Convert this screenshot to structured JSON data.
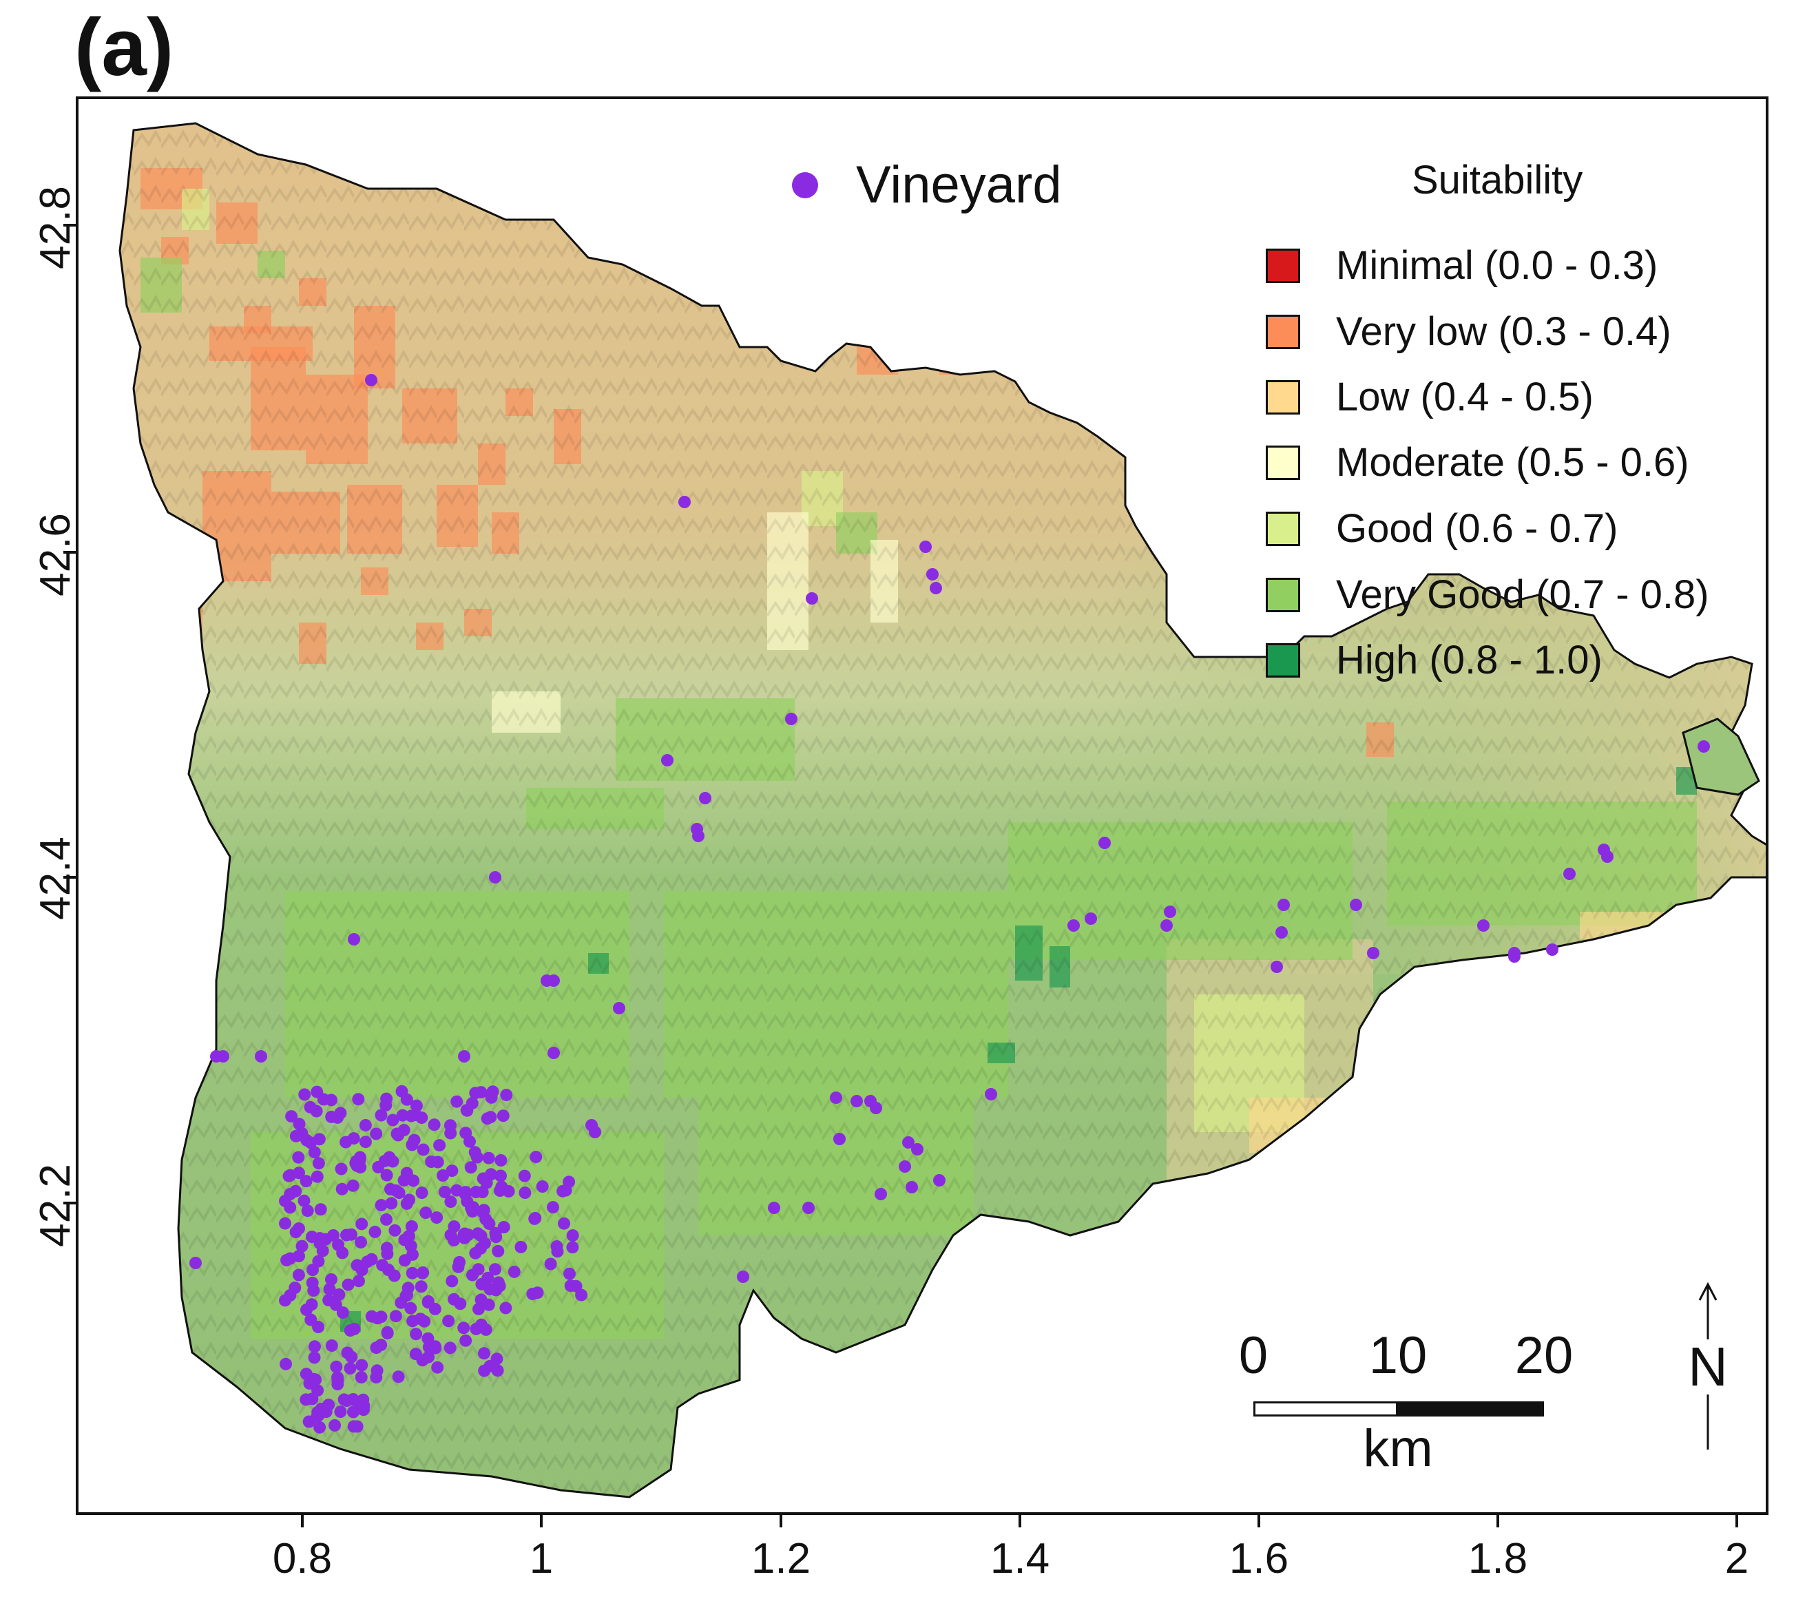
{
  "panel_label": "(a)",
  "map": {
    "colors": {
      "minimal": "#d7191c",
      "very_low": "#fc8d59",
      "low": "#fed98e",
      "moderate": "#ffffcc",
      "good": "#d9ef8b",
      "very_good": "#91cf60",
      "high": "#1a9850",
      "vineyard": "#8a2be2"
    }
  },
  "axes": {
    "y_ticks": [
      "42.8",
      "42.6",
      "42.4",
      "42.2"
    ],
    "x_ticks": [
      "0.8",
      "1",
      "1.2",
      "1.4",
      "1.6",
      "1.8",
      "2"
    ]
  },
  "vineyard_legend": {
    "label": "Vineyard",
    "icon": "filled-circle"
  },
  "legend": {
    "title": "Suitability",
    "items": [
      {
        "label": "Minimal (0.0 - 0.3)",
        "color": "#d7191c"
      },
      {
        "label": "Very low (0.3 - 0.4)",
        "color": "#fc8d59"
      },
      {
        "label": "Low (0.4 - 0.5)",
        "color": "#fed98e"
      },
      {
        "label": "Moderate (0.5 - 0.6)",
        "color": "#ffffcc"
      },
      {
        "label": "Good (0.6 - 0.7)",
        "color": "#d9ef8b"
      },
      {
        "label": "Very Good (0.7 - 0.8)",
        "color": "#91cf60"
      },
      {
        "label": "High (0.8 - 1.0)",
        "color": "#1a9850"
      }
    ]
  },
  "scalebar": {
    "ticks": [
      "0",
      "10",
      "20"
    ],
    "unit": "km"
  },
  "north_arrow": {
    "label": "N",
    "icon": "north-arrow-icon"
  }
}
